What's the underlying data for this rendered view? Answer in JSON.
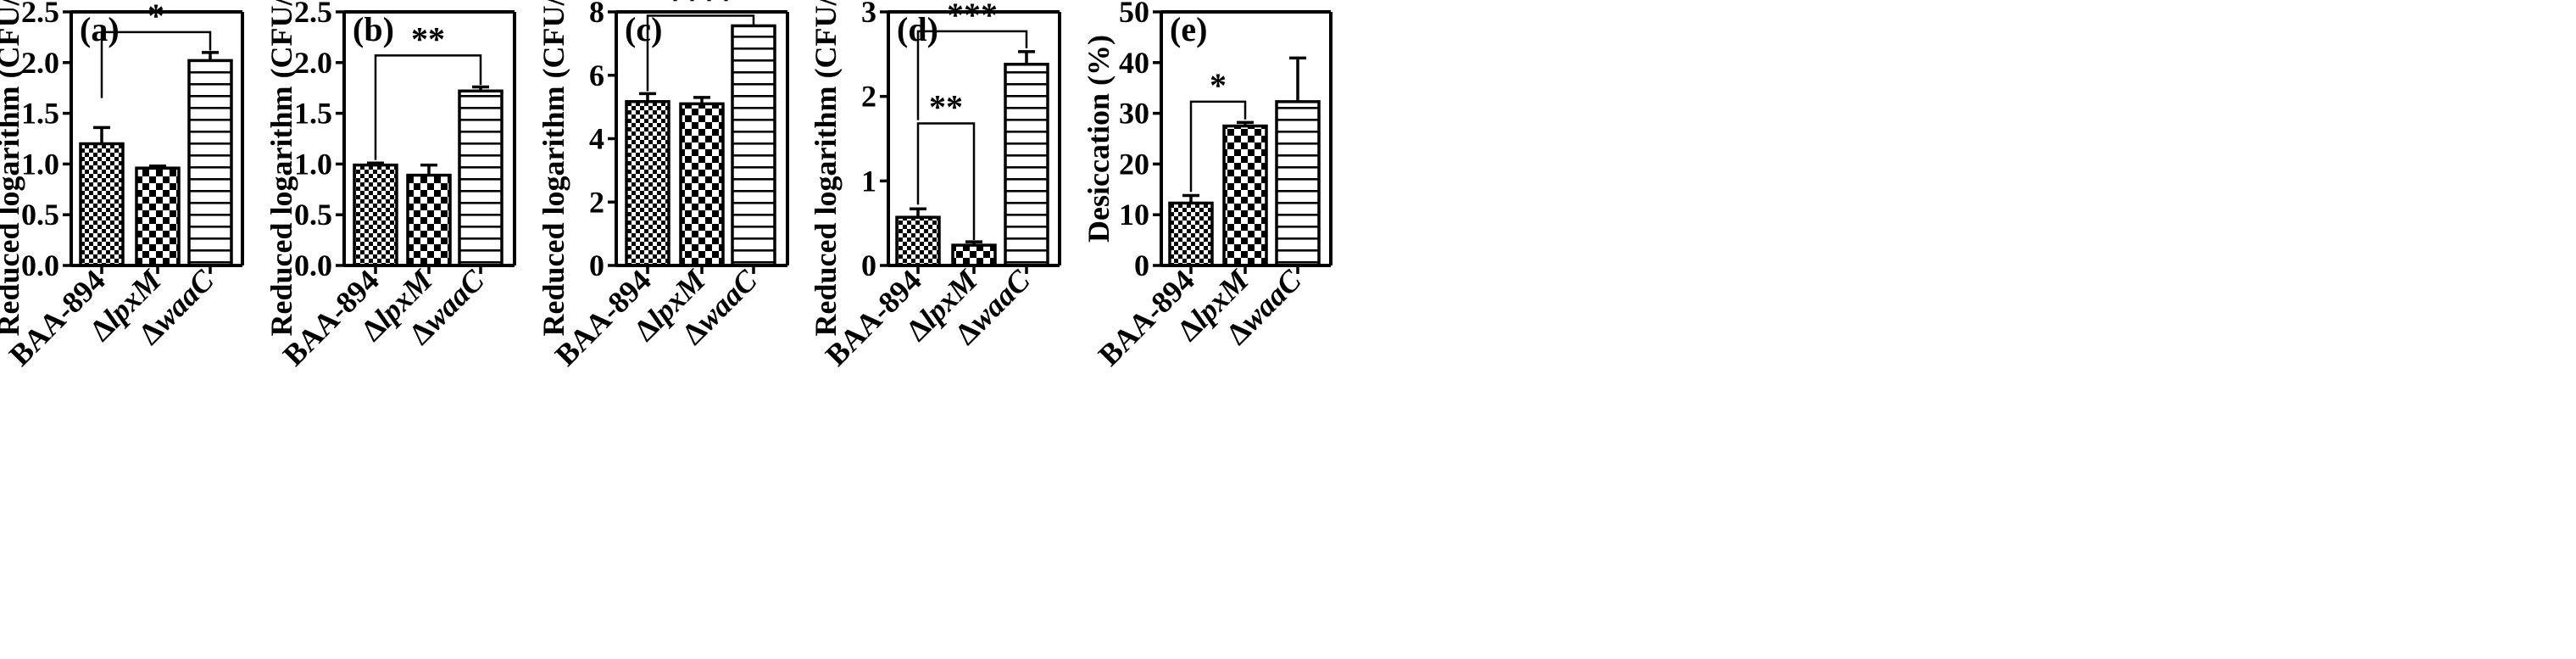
{
  "figure": {
    "caption": ""
  },
  "chart_data": [
    {
      "panel": "(a)",
      "type": "bar",
      "categories": [
        "BAA-894",
        "ΔlpxM",
        "ΔwaaC"
      ],
      "values": [
        1.2,
        0.96,
        2.02
      ],
      "errors": [
        0.16,
        0.02,
        0.08
      ],
      "ylabel": "Reduced logarithm (CFU/mL)",
      "ylim": [
        0,
        2.5
      ],
      "yticks": [
        "0.0",
        "0.5",
        "1.0",
        "1.5",
        "2.0",
        "2.5"
      ],
      "significance": [
        {
          "from": 0,
          "to": 2,
          "label": "*",
          "level": 2.3,
          "drop_left": 1.65,
          "drop_right": 2.12
        }
      ]
    },
    {
      "panel": "(b)",
      "type": "bar",
      "categories": [
        "BAA-894",
        "ΔlpxM",
        "ΔwaaC"
      ],
      "values": [
        0.99,
        0.89,
        1.72
      ],
      "errors": [
        0.02,
        0.1,
        0.04
      ],
      "ylabel": "Reduced logarithm (CFU/mL)",
      "ylim": [
        0,
        2.5
      ],
      "yticks": [
        "0.0",
        "0.5",
        "1.0",
        "1.5",
        "2.0",
        "2.5"
      ],
      "significance": [
        {
          "from": 0,
          "to": 2,
          "label": "**",
          "level": 2.07,
          "drop_left": 1.04,
          "drop_right": 1.78
        }
      ]
    },
    {
      "panel": "(c)",
      "type": "bar",
      "categories": [
        "BAA-894",
        "ΔlpxM",
        "ΔwaaC"
      ],
      "values": [
        5.17,
        5.1,
        7.56
      ],
      "errors": [
        0.25,
        0.2,
        0.0
      ],
      "ylabel": "Reduced logarithm (CFU/mL)",
      "ylim": [
        0,
        8
      ],
      "yticks": [
        "0",
        "2",
        "4",
        "6",
        "8"
      ],
      "significance": [
        {
          "from": 0,
          "to": 2,
          "label": "****",
          "level": 7.88,
          "drop_left": 5.5,
          "drop_right": 7.6
        }
      ]
    },
    {
      "panel": "(d)",
      "type": "bar",
      "categories": [
        "BAA-894",
        "ΔlpxM",
        "ΔwaaC"
      ],
      "values": [
        0.57,
        0.24,
        2.38
      ],
      "errors": [
        0.1,
        0.04,
        0.15
      ],
      "ylabel": "Reduced logarithm (CFU/mL)",
      "ylim": [
        0,
        3
      ],
      "yticks": [
        "0",
        "1",
        "2",
        "3"
      ],
      "significance": [
        {
          "from": 0,
          "to": 1,
          "label": "**",
          "level": 1.68,
          "drop_left": 0.72,
          "drop_right": 0.3
        },
        {
          "from": 0,
          "to": 2,
          "label": "***",
          "level": 2.77,
          "drop_left": 1.72,
          "drop_right": 2.57
        }
      ]
    },
    {
      "panel": "(e)",
      "type": "bar",
      "categories": [
        "BAA-894",
        "ΔlpxM",
        "ΔwaaC"
      ],
      "values": [
        12.3,
        27.5,
        32.3
      ],
      "errors": [
        1.5,
        0.7,
        8.6
      ],
      "ylabel": "Desiccation (%)",
      "ylim": [
        0,
        50
      ],
      "yticks": [
        "0",
        "10",
        "20",
        "30",
        "40",
        "50"
      ],
      "significance": [
        {
          "from": 0,
          "to": 1,
          "label": "*",
          "level": 32.3,
          "drop_left": 14.5,
          "drop_right": 28.8
        }
      ]
    }
  ]
}
